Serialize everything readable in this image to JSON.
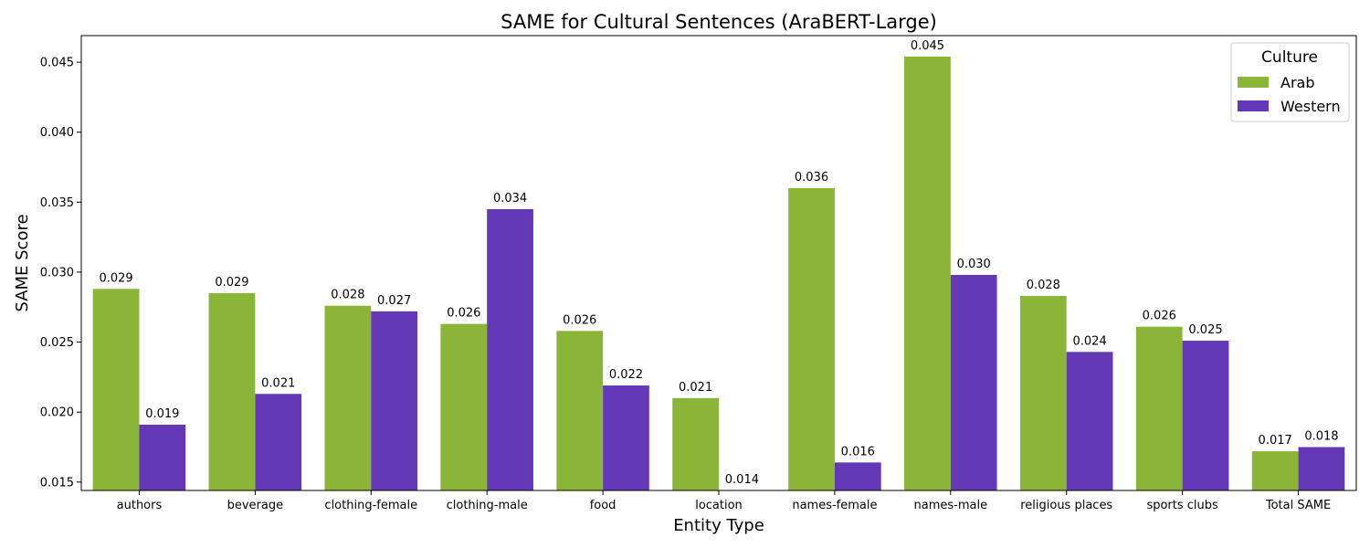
{
  "chart_data": {
    "type": "bar",
    "title": "SAME for Cultural Sentences (AraBERT-Large)",
    "xlabel": "Entity Type",
    "ylabel": "SAME Score",
    "categories": [
      "authors",
      "beverage",
      "clothing-female",
      "clothing-male",
      "food",
      "location",
      "names-female",
      "names-male",
      "religious places",
      "sports clubs",
      "Total SAME"
    ],
    "series": [
      {
        "name": "Arab",
        "color": "#8ab536",
        "values": [
          0.0288,
          0.0285,
          0.0276,
          0.0263,
          0.0258,
          0.021,
          0.036,
          0.0454,
          0.0283,
          0.0261,
          0.0172
        ],
        "labels": [
          "0.029",
          "0.029",
          "0.028",
          "0.026",
          "0.026",
          "0.021",
          "0.036",
          "0.045",
          "0.028",
          "0.026",
          "0.017"
        ]
      },
      {
        "name": "Western",
        "color": "#6439b8",
        "values": [
          0.0191,
          0.0213,
          0.0272,
          0.0345,
          0.0219,
          0.014,
          0.0164,
          0.0298,
          0.0243,
          0.0251,
          0.0175
        ],
        "labels": [
          "0.019",
          "0.021",
          "0.027",
          "0.034",
          "0.022",
          "0.014",
          "0.016",
          "0.030",
          "0.024",
          "0.025",
          "0.018"
        ]
      }
    ],
    "ylim": [
      0.0144,
      0.0469
    ],
    "yticks": [
      "0.015",
      "0.020",
      "0.025",
      "0.030",
      "0.035",
      "0.040",
      "0.045"
    ],
    "legend": {
      "title": "Culture",
      "position": "top-right"
    },
    "grid": false
  }
}
